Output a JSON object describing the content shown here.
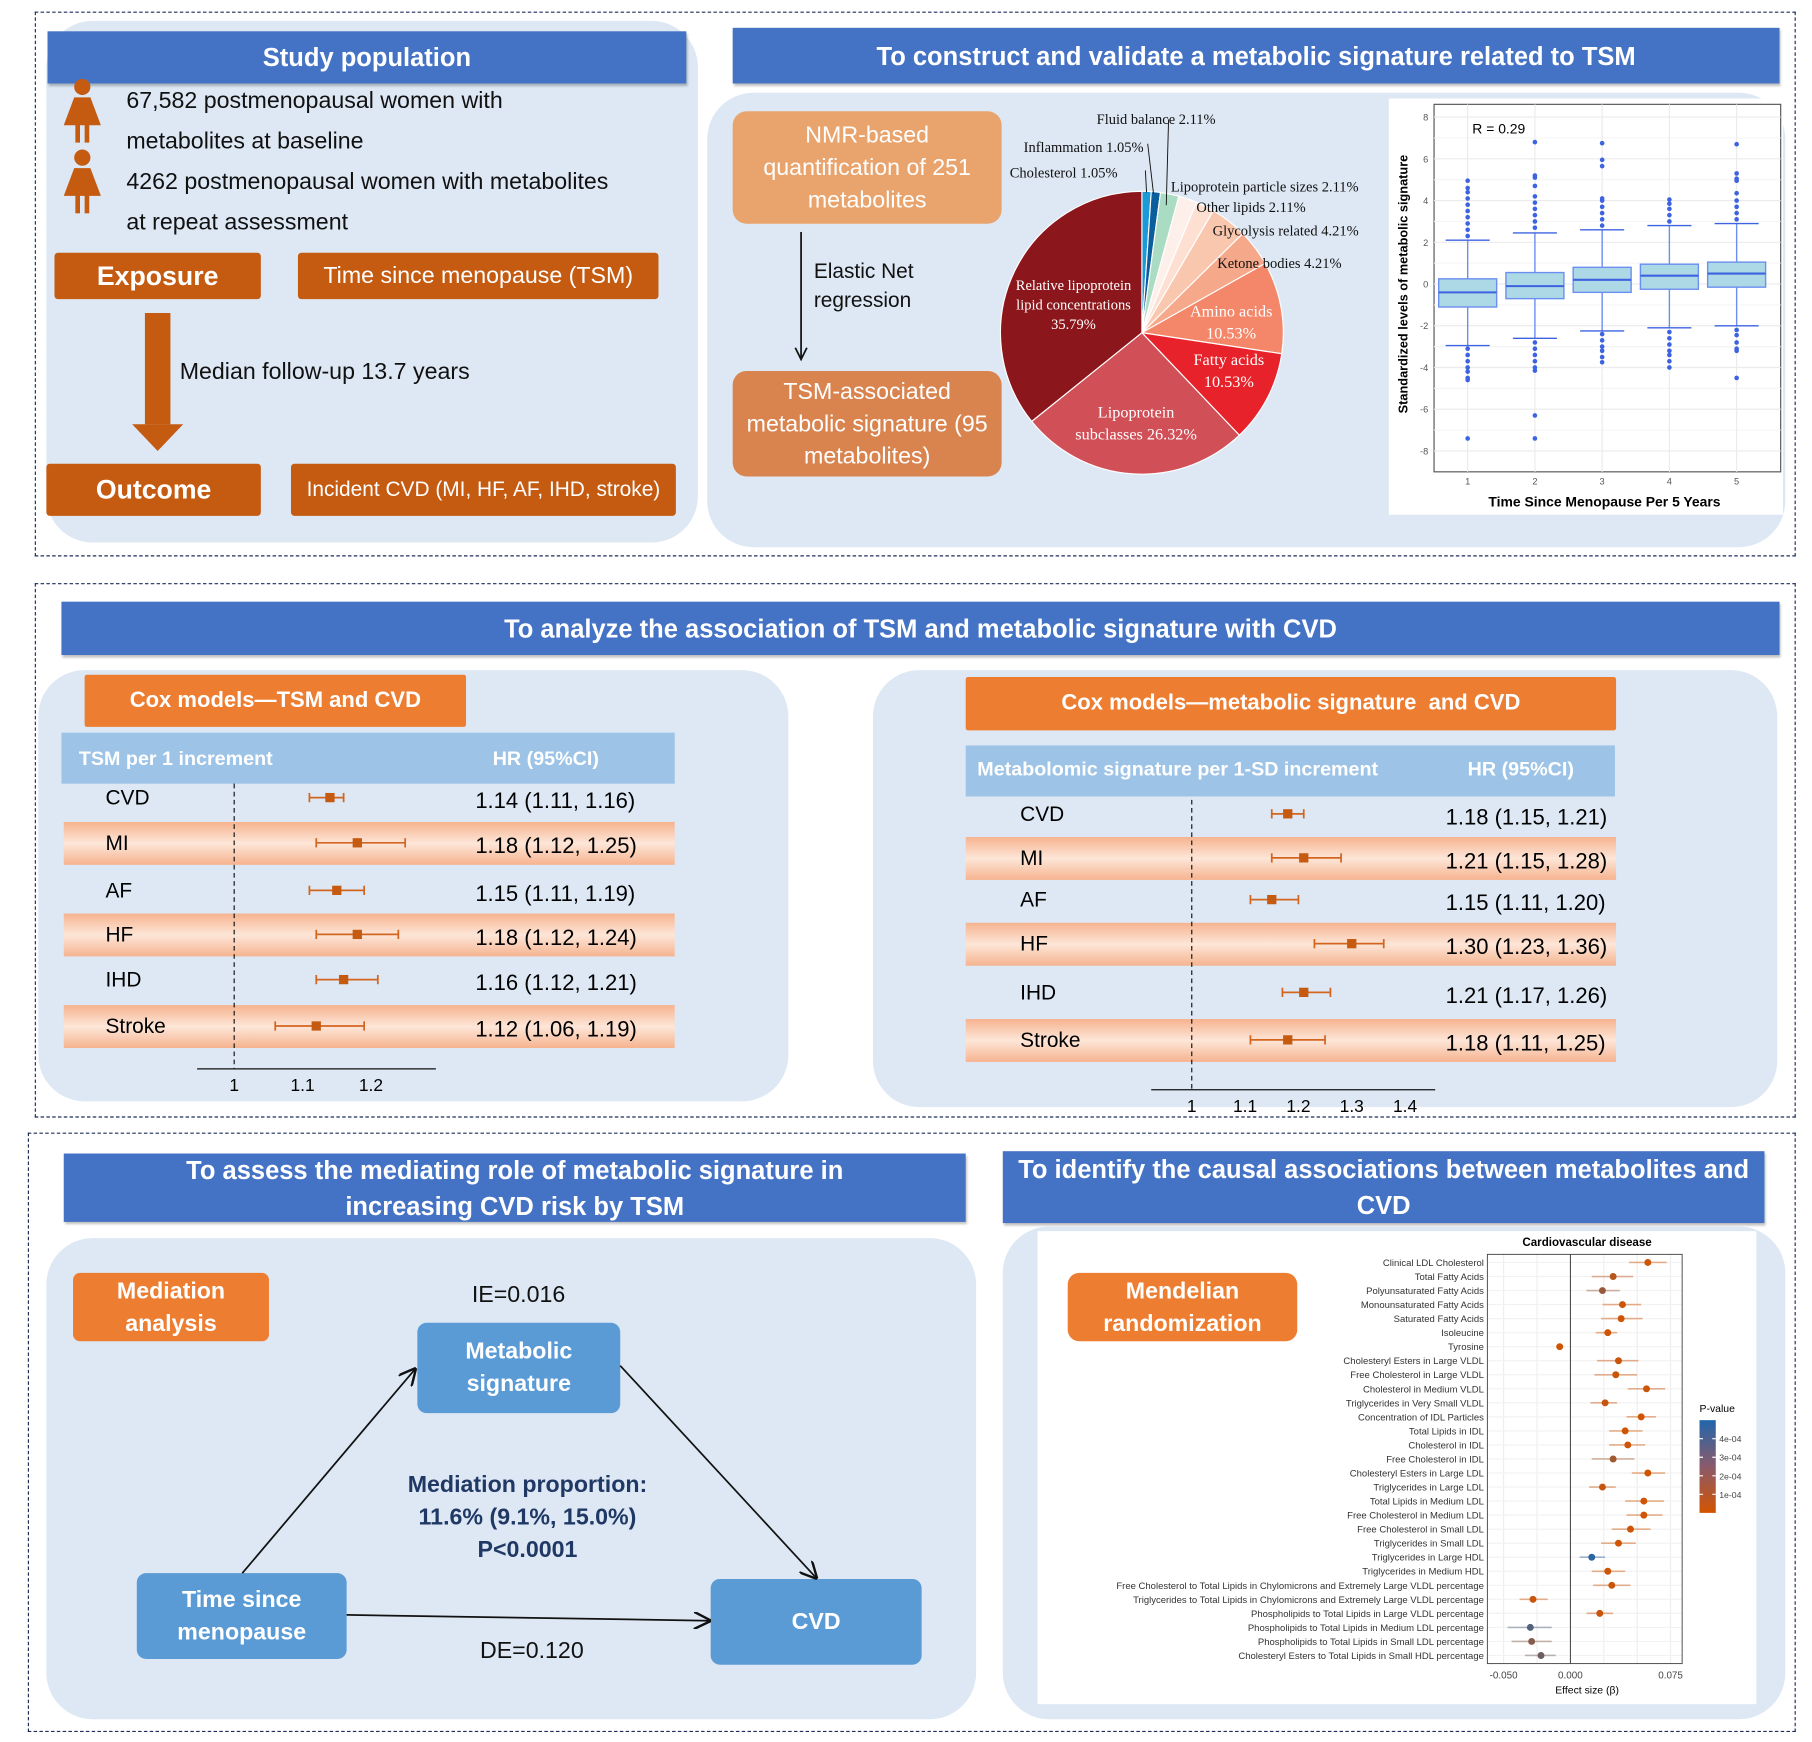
{
  "study": {
    "title": "Study population",
    "line1a": "67,582 postmenopausal women with",
    "line1b": "metabolites at baseline",
    "line2a": "4262 postmenopausal women with metabolites",
    "line2b": "at repeat assessment",
    "exposure": "Exposure",
    "exposure_value": "Time since menopause (TSM)",
    "followup": "Median follow-up 13.7 years",
    "outcome": "Outcome",
    "outcome_value": "Incident CVD (MI, HF, AF, IHD, stroke)"
  },
  "signature": {
    "title": "To construct and validate a metabolic signature related to TSM",
    "nmr": "NMR-based quantification of 251 metabolites",
    "method": "Elastic Net",
    "method2": "regression",
    "result": "TSM-associated metabolic signature (95 metabolites)"
  },
  "colors": {
    "blue_bar": "#4472C4",
    "orange": "#ED7D31",
    "dark_orange": "#C55A11",
    "panel": "#dde8f4",
    "box_blue": "#5B9BD5"
  },
  "chart_data": [
    {
      "type": "pie",
      "title": "",
      "slices": [
        {
          "label": "Cholesterol 1.05%",
          "name": "Cholesterol",
          "value": 1.05,
          "color": "#1a9ad6"
        },
        {
          "label": "Inflammation 1.05%",
          "name": "Inflammation",
          "value": 1.05,
          "color": "#0b5e9e"
        },
        {
          "label": "Fluid balance 2.11%",
          "name": "Fluid balance",
          "value": 2.11,
          "color": "#a9dcc2"
        },
        {
          "label": "Lipoprotein particle sizes 2.11%",
          "name": "Lipoprotein particle sizes",
          "value": 2.11,
          "color": "#fdf0ea"
        },
        {
          "label": "Other lipids 2.11%",
          "name": "Other lipids",
          "value": 2.11,
          "color": "#fde0d2"
        },
        {
          "label": "Glycolysis related 4.21%",
          "name": "Glycolysis related",
          "value": 4.21,
          "color": "#f9c6ae"
        },
        {
          "label": "Ketone bodies 4.21%",
          "name": "Ketone bodies",
          "value": 4.21,
          "color": "#f6a98a"
        },
        {
          "label": "Amino acids",
          "label2": "10.53%",
          "name": "Amino acids",
          "value": 10.53,
          "color": "#f4876a"
        },
        {
          "label": "Fatty acids",
          "label2": "10.53%",
          "name": "Fatty acids",
          "value": 10.53,
          "color": "#e8222a"
        },
        {
          "label": "Lipoprotein",
          "label2": "subclasses 26.32%",
          "name": "Lipoprotein subclasses",
          "value": 26.32,
          "color": "#d14f57"
        },
        {
          "label": "Relative lipoprotein",
          "label2": "lipid concentrations",
          "label3": "35.79%",
          "name": "Relative lipoprotein lipid concentrations",
          "value": 35.79,
          "color": "#8b161b"
        }
      ]
    },
    {
      "type": "box",
      "annotation": "R = 0.29",
      "xlabel": "Time Since Menopause Per 5 Years",
      "ylabel": "Standardized levels of metabolic signature",
      "ylim": [
        -8.5,
        8.6
      ],
      "yticks": [
        -8,
        -6,
        -4,
        -2,
        0,
        2,
        4,
        6,
        8
      ],
      "categories": [
        "1",
        "2",
        "3",
        "4",
        "5"
      ],
      "boxes": [
        {
          "q1": -1.1,
          "median": -0.4,
          "q3": 0.25,
          "lower": -2.95,
          "upper": 2.1,
          "outliers": [
            2.3,
            2.6,
            2.9,
            3.2,
            3.5,
            3.8,
            4.1,
            4.4,
            4.6,
            4.95,
            -3.1,
            -3.4,
            -3.7,
            -4.0,
            -4.2,
            -4.5,
            -4.6,
            -7.4
          ]
        },
        {
          "q1": -0.7,
          "median": -0.1,
          "q3": 0.55,
          "lower": -2.6,
          "upper": 2.45,
          "outliers": [
            2.7,
            3.0,
            3.3,
            3.6,
            3.9,
            4.2,
            4.7,
            5.1,
            5.2,
            6.8,
            -2.8,
            -3.1,
            -3.4,
            -3.7,
            -4.0,
            -4.15,
            -6.3,
            -7.4
          ]
        },
        {
          "q1": -0.4,
          "median": 0.2,
          "q3": 0.8,
          "lower": -2.25,
          "upper": 2.6,
          "outliers": [
            2.8,
            3.1,
            3.4,
            3.7,
            4.0,
            4.1,
            5.65,
            5.95,
            6.75,
            -2.4,
            -2.7,
            -3.0,
            -3.2,
            -3.5,
            -3.75
          ]
        },
        {
          "q1": -0.25,
          "median": 0.4,
          "q3": 0.95,
          "lower": -2.1,
          "upper": 2.8,
          "outliers": [
            3.0,
            3.3,
            3.6,
            3.85,
            4.05,
            -2.3,
            -2.6,
            -2.9,
            -3.2,
            -3.4,
            -3.7,
            -4.0
          ]
        },
        {
          "q1": -0.15,
          "median": 0.5,
          "q3": 1.05,
          "lower": -2.0,
          "upper": 2.9,
          "outliers": [
            3.1,
            3.4,
            3.7,
            4.0,
            4.35,
            4.95,
            5.05,
            5.3,
            6.7,
            -2.2,
            -2.45,
            -2.8,
            -3.1,
            -3.2,
            -4.5
          ]
        }
      ]
    },
    {
      "type": "forest",
      "title": "Cox models—TSM and CVD",
      "header_left": "TSM per 1 increment",
      "header_right": "HR (95%CI)",
      "ref": 1,
      "xticks": [
        {
          "v": 1,
          "label": "1"
        },
        {
          "v": 1.1,
          "label": "1.1"
        },
        {
          "v": 1.2,
          "label": "1.2"
        }
      ],
      "rows": [
        {
          "label": "CVD",
          "hr": 1.14,
          "lo": 1.11,
          "hi": 1.16,
          "text": "1.14 (1.11, 1.16)"
        },
        {
          "label": "MI",
          "hr": 1.18,
          "lo": 1.12,
          "hi": 1.25,
          "text": "1.18 (1.12, 1.25)"
        },
        {
          "label": "AF",
          "hr": 1.15,
          "lo": 1.11,
          "hi": 1.19,
          "text": "1.15 (1.11, 1.19)"
        },
        {
          "label": "HF",
          "hr": 1.18,
          "lo": 1.12,
          "hi": 1.24,
          "text": "1.18 (1.12, 1.24)"
        },
        {
          "label": "IHD",
          "hr": 1.16,
          "lo": 1.12,
          "hi": 1.21,
          "text": "1.16 (1.12, 1.21)"
        },
        {
          "label": "Stroke",
          "hr": 1.12,
          "lo": 1.06,
          "hi": 1.19,
          "text": "1.12 (1.06, 1.19)"
        }
      ]
    },
    {
      "type": "forest",
      "title": "Cox models—metabolic signature  and CVD",
      "header_left": "Metabolomic signature per 1-SD increment",
      "header_right": "HR (95%CI)",
      "ref": 1,
      "xticks": [
        {
          "v": 1,
          "label": "1"
        },
        {
          "v": 1.1,
          "label": "1.1"
        },
        {
          "v": 1.2,
          "label": "1.2"
        },
        {
          "v": 1.3,
          "label": "1.3"
        },
        {
          "v": 1.4,
          "label": "1.4"
        }
      ],
      "rows": [
        {
          "label": "CVD",
          "hr": 1.18,
          "lo": 1.15,
          "hi": 1.21,
          "text": "1.18 (1.15, 1.21)"
        },
        {
          "label": "MI",
          "hr": 1.21,
          "lo": 1.15,
          "hi": 1.28,
          "text": "1.21 (1.15, 1.28)"
        },
        {
          "label": "AF",
          "hr": 1.15,
          "lo": 1.11,
          "hi": 1.2,
          "text": "1.15 (1.11, 1.20)"
        },
        {
          "label": "HF",
          "hr": 1.3,
          "lo": 1.23,
          "hi": 1.36,
          "text": "1.30 (1.23, 1.36)"
        },
        {
          "label": "IHD",
          "hr": 1.21,
          "lo": 1.17,
          "hi": 1.26,
          "text": "1.21 (1.17, 1.26)"
        },
        {
          "label": "Stroke",
          "hr": 1.18,
          "lo": 1.11,
          "hi": 1.25,
          "text": "1.18 (1.11, 1.25)"
        }
      ]
    },
    {
      "type": "forest",
      "title": "Cardiovascular disease",
      "xlabel": "Effect size (β)",
      "legend_title": "P-value",
      "legend_ticks": [
        {
          "v": 0.0004,
          "label": "4e-04"
        },
        {
          "v": 0.0003,
          "label": "3e-04"
        },
        {
          "v": 0.0002,
          "label": "2e-04"
        },
        {
          "v": 0.0001,
          "label": "1e-04"
        }
      ],
      "legend_placement": "right",
      "xlim": [
        -0.063,
        0.083
      ],
      "xticks": [
        {
          "v": -0.05,
          "label": "-0.050"
        },
        {
          "v": 0,
          "label": "0.000"
        },
        {
          "v": 0.075,
          "label": "0.075"
        }
      ],
      "rows": [
        {
          "label": "Clinical LDL Cholesterol",
          "beta": 0.058,
          "lo": 0.044,
          "hi": 0.072,
          "p": 2e-05
        },
        {
          "label": "Total Fatty Acids",
          "beta": 0.032,
          "lo": 0.016,
          "hi": 0.047,
          "p": 8e-05
        },
        {
          "label": "Polyunsaturated Fatty Acids",
          "beta": 0.024,
          "lo": 0.012,
          "hi": 0.037,
          "p": 0.00017
        },
        {
          "label": "Monounsaturated Fatty Acids",
          "beta": 0.039,
          "lo": 0.024,
          "hi": 0.053,
          "p": 2e-05
        },
        {
          "label": "Saturated Fatty Acids",
          "beta": 0.038,
          "lo": 0.023,
          "hi": 0.054,
          "p": 2e-05
        },
        {
          "label": "Isoleucine",
          "beta": 0.028,
          "lo": 0.019,
          "hi": 0.035,
          "p": 1e-05
        },
        {
          "label": "Tyrosine",
          "beta": -0.008,
          "lo": -0.009,
          "hi": -0.007,
          "p": 1e-05
        },
        {
          "label": "Cholesteryl Esters in Large VLDL",
          "beta": 0.036,
          "lo": 0.02,
          "hi": 0.051,
          "p": 3e-05
        },
        {
          "label": "Free Cholesterol in Large VLDL",
          "beta": 0.034,
          "lo": 0.018,
          "hi": 0.05,
          "p": 3e-05
        },
        {
          "label": "Cholesterol in Medium VLDL",
          "beta": 0.057,
          "lo": 0.043,
          "hi": 0.071,
          "p": 2e-05
        },
        {
          "label": "Triglycerides in Very Small VLDL",
          "beta": 0.026,
          "lo": 0.015,
          "hi": 0.035,
          "p": 4e-05
        },
        {
          "label": "Concentration of IDL Particles",
          "beta": 0.053,
          "lo": 0.042,
          "hi": 0.064,
          "p": 1e-05
        },
        {
          "label": "Total Lipids in IDL",
          "beta": 0.041,
          "lo": 0.029,
          "hi": 0.054,
          "p": 1e-05
        },
        {
          "label": "Cholesterol in IDL",
          "beta": 0.043,
          "lo": 0.029,
          "hi": 0.056,
          "p": 2e-05
        },
        {
          "label": "Free Cholesterol in IDL",
          "beta": 0.032,
          "lo": 0.016,
          "hi": 0.048,
          "p": 0.00014
        },
        {
          "label": "Cholesteryl Esters in Large LDL",
          "beta": 0.058,
          "lo": 0.046,
          "hi": 0.071,
          "p": 1e-05
        },
        {
          "label": "Triglycerides in Large LDL",
          "beta": 0.024,
          "lo": 0.014,
          "hi": 0.034,
          "p": 4e-05
        },
        {
          "label": "Total Lipids in Medium LDL",
          "beta": 0.055,
          "lo": 0.041,
          "hi": 0.07,
          "p": 1e-05
        },
        {
          "label": "Free Cholesterol in Medium LDL",
          "beta": 0.055,
          "lo": 0.042,
          "hi": 0.069,
          "p": 1e-05
        },
        {
          "label": "Free Cholesterol in Small LDL",
          "beta": 0.045,
          "lo": 0.031,
          "hi": 0.06,
          "p": 2e-05
        },
        {
          "label": "Triglycerides in Small LDL",
          "beta": 0.036,
          "lo": 0.023,
          "hi": 0.049,
          "p": 1e-05
        },
        {
          "label": "Triglycerides in Large HDL",
          "beta": 0.016,
          "lo": 0.007,
          "hi": 0.026,
          "p": 0.00046
        },
        {
          "label": "Triglycerides in Medium HDL",
          "beta": 0.028,
          "lo": 0.016,
          "hi": 0.041,
          "p": 2e-05
        },
        {
          "label": "Free Cholesterol to Total Lipids in Chylomicrons and Extremely Large VLDL percentage",
          "beta": 0.031,
          "lo": 0.017,
          "hi": 0.045,
          "p": 3e-05
        },
        {
          "label": "Triglycerides to Total Lipids in Chylomicrons and Extremely Large VLDL percentage",
          "beta": -0.028,
          "lo": -0.038,
          "hi": -0.017,
          "p": 3e-05
        },
        {
          "label": "Phospholipids to Total Lipids in Large VLDL percentage",
          "beta": 0.022,
          "lo": 0.012,
          "hi": 0.032,
          "p": 3e-05
        },
        {
          "label": "Phospholipids to Total Lipids in Medium LDL percentage",
          "beta": -0.03,
          "lo": -0.047,
          "hi": -0.014,
          "p": 0.00036
        },
        {
          "label": "Phospholipids to Total Lipids in Small LDL percentage",
          "beta": -0.029,
          "lo": -0.044,
          "hi": -0.014,
          "p": 0.00022
        },
        {
          "label": "Cholesteryl Esters to Total Lipids in Small HDL percentage",
          "beta": -0.022,
          "lo": -0.034,
          "hi": -0.011,
          "p": 0.00028
        }
      ]
    }
  ],
  "analysis": {
    "title": "To analyze the association of TSM and metabolic signature with CVD"
  },
  "mediation": {
    "title": "To assess the mediating role of metabolic signature in increasing CVD risk by TSM",
    "label": "Mediation analysis",
    "ie": "IE=0.016",
    "de": "DE=0.120",
    "metabolic": "Metabolic signature",
    "time": "Time since menopause",
    "cvd": "CVD",
    "prop1": "Mediation proportion:",
    "prop2": "11.6% (9.1%, 15.0%)",
    "prop3": "P<0.0001"
  },
  "mr": {
    "title": "To identify the causal associations between metabolites and CVD",
    "label": "Mendelian randomization"
  }
}
